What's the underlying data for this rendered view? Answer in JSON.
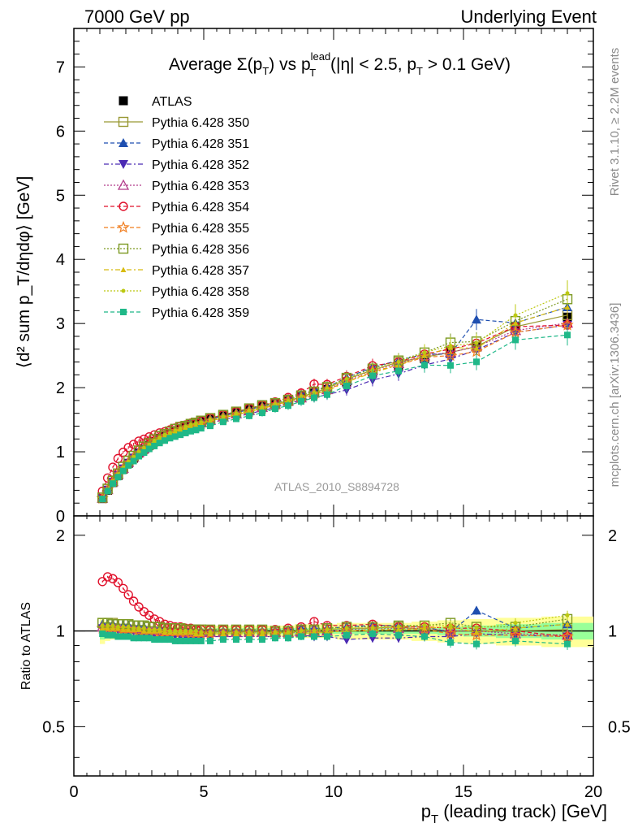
{
  "header": {
    "left": "7000 GeV pp",
    "right": "Underlying Event"
  },
  "title": {
    "prefix": "Average ",
    "sigma": "Σ(p",
    "sub_t1": "T",
    "mid": ") vs p",
    "sup_lead": "lead",
    "sub_t2": "T",
    "rest": " (|η| < 2.5, p",
    "sub_t3": "T",
    "tail": " > 0.1 GeV)"
  },
  "side_labels": {
    "rivet": "Rivet 3.1.10, ≥ 2.2M events",
    "mcplots": "mcplots.cern.ch [arXiv:1306.3436]"
  },
  "analysis_id": "ATLAS_2010_S8894728",
  "axes": {
    "ylabel_main": "⟨d² sum p_T/dηdφ⟩ [GeV]",
    "ylabel_ratio": "Ratio to ATLAS",
    "xlabel": "p_T (leading track) [GeV]",
    "xlabel_main": "p",
    "xlabel_sub": "T",
    "xlabel_rest": " (leading track) [GeV]"
  },
  "chart_data": {
    "type": "scatter",
    "x_range": [
      0,
      20
    ],
    "y_main_range": [
      0,
      7.6
    ],
    "y_ratio_range": [
      0.35,
      2.3
    ],
    "x_ticks": [
      0,
      5,
      10,
      15,
      20
    ],
    "y_main_ticks": [
      0,
      1,
      2,
      3,
      4,
      5,
      6,
      7
    ],
    "y_ratio_ticks": [
      0.5,
      1,
      2
    ],
    "x": [
      1.1,
      1.3,
      1.5,
      1.7,
      1.9,
      2.1,
      2.3,
      2.5,
      2.7,
      2.9,
      3.1,
      3.3,
      3.5,
      3.7,
      3.9,
      4.1,
      4.3,
      4.5,
      4.7,
      4.9,
      5.25,
      5.75,
      6.25,
      6.75,
      7.25,
      7.75,
      8.25,
      8.75,
      9.25,
      9.75,
      10.5,
      11.5,
      12.5,
      13.5,
      14.5,
      15.5,
      17.0,
      19.0
    ],
    "data_y": [
      0.27,
      0.4,
      0.52,
      0.63,
      0.73,
      0.82,
      0.9,
      0.98,
      1.04,
      1.1,
      1.16,
      1.21,
      1.25,
      1.29,
      1.33,
      1.36,
      1.39,
      1.42,
      1.44,
      1.47,
      1.51,
      1.56,
      1.61,
      1.66,
      1.71,
      1.76,
      1.81,
      1.86,
      1.92,
      1.97,
      2.09,
      2.23,
      2.33,
      2.45,
      2.55,
      2.64,
      2.95,
      3.1
    ],
    "series": [
      {
        "name": "ATLAS",
        "color": "#000000",
        "marker": "filled-square",
        "dash": "",
        "ratio": [
          1,
          1,
          1,
          1,
          1,
          1,
          1,
          1,
          1,
          1,
          1,
          1,
          1,
          1,
          1,
          1,
          1,
          1,
          1,
          1,
          1,
          1,
          1,
          1,
          1,
          1,
          1,
          1,
          1,
          1,
          1,
          1,
          1,
          1,
          1,
          1,
          1,
          1
        ]
      },
      {
        "name": "Pythia 6.428 350",
        "color": "#999933",
        "marker": "open-square",
        "dash": "",
        "ratio": [
          1.06,
          1.06,
          1.06,
          1.05,
          1.05,
          1.05,
          1.04,
          1.04,
          1.04,
          1.03,
          1.03,
          1.03,
          1.02,
          1.02,
          1.02,
          1.02,
          1.01,
          1.01,
          1.01,
          1.01,
          1.0,
          1.0,
          1.0,
          1.0,
          1.0,
          0.99,
          0.99,
          1.0,
          1.0,
          1.01,
          1.02,
          1.02,
          1.03,
          1.01,
          1.0,
          1.0,
          1.0,
          1.01
        ]
      },
      {
        "name": "Pythia 6.428 351",
        "color": "#1f4fb0",
        "marker": "filled-triangle-up",
        "dash": "5,3",
        "ratio": [
          1.05,
          1.05,
          1.05,
          1.04,
          1.04,
          1.04,
          1.03,
          1.03,
          1.03,
          1.02,
          1.02,
          1.02,
          1.02,
          1.01,
          1.01,
          1.01,
          1.01,
          1.01,
          1.0,
          1.0,
          1.0,
          1.0,
          1.0,
          1.0,
          1.0,
          1.0,
          1.01,
          1.02,
          1.02,
          1.02,
          1.03,
          1.04,
          1.04,
          1.03,
          0.99,
          1.16,
          1.02,
          1.05
        ]
      },
      {
        "name": "Pythia 6.428 352",
        "color": "#4b2ab3",
        "marker": "filled-triangle-down",
        "dash": "6,3,2,3",
        "ratio": [
          1.02,
          1.02,
          1.02,
          1.01,
          1.01,
          1.0,
          1.0,
          0.99,
          0.99,
          0.98,
          0.98,
          0.98,
          0.97,
          0.97,
          0.97,
          0.96,
          0.96,
          0.96,
          0.96,
          0.96,
          0.96,
          0.96,
          0.96,
          0.96,
          0.96,
          0.96,
          0.97,
          0.97,
          0.96,
          0.96,
          0.94,
          0.95,
          0.95,
          0.96,
          0.96,
          0.98,
          0.97,
          0.96
        ]
      },
      {
        "name": "Pythia 6.428 353",
        "color": "#b23b8a",
        "marker": "open-triangle-up",
        "dash": "2,2",
        "ratio": [
          1.03,
          1.03,
          1.03,
          1.03,
          1.02,
          1.02,
          1.02,
          1.01,
          1.01,
          1.01,
          1.01,
          1.0,
          1.0,
          1.0,
          1.0,
          1.0,
          0.99,
          0.99,
          0.99,
          0.99,
          0.99,
          0.99,
          0.99,
          0.99,
          0.99,
          0.99,
          0.99,
          0.99,
          1.0,
          1.0,
          1.01,
          1.02,
          1.02,
          1.02,
          1.0,
          1.0,
          0.98,
          0.97
        ]
      },
      {
        "name": "Pythia 6.428 354",
        "color": "#e0102b",
        "marker": "open-circle",
        "dash": "5,3",
        "ratio": [
          1.43,
          1.48,
          1.46,
          1.42,
          1.36,
          1.3,
          1.24,
          1.19,
          1.15,
          1.12,
          1.09,
          1.07,
          1.05,
          1.04,
          1.03,
          1.03,
          1.02,
          1.02,
          1.01,
          1.01,
          1.01,
          1.01,
          1.01,
          1.01,
          1.01,
          1.01,
          1.02,
          1.03,
          1.07,
          1.04,
          1.04,
          1.05,
          1.03,
          1.03,
          1.02,
          1.02,
          1.0,
          0.96
        ]
      },
      {
        "name": "Pythia 6.428 355",
        "color": "#f07d1f",
        "marker": "open-star",
        "dash": "5,3",
        "ratio": [
          1.02,
          1.02,
          1.02,
          1.02,
          1.01,
          1.01,
          1.01,
          1.0,
          1.0,
          1.0,
          1.0,
          0.99,
          0.99,
          0.99,
          0.99,
          0.99,
          0.99,
          0.98,
          0.98,
          0.98,
          0.98,
          0.98,
          0.98,
          0.98,
          0.98,
          0.98,
          0.99,
          0.99,
          0.99,
          1.0,
          1.0,
          1.01,
          1.01,
          1.01,
          0.98,
          0.97,
          0.97,
          0.96
        ]
      },
      {
        "name": "Pythia 6.428 356",
        "color": "#7d9a23",
        "marker": "open-square",
        "dash": "2,2",
        "ratio": [
          1.06,
          1.06,
          1.05,
          1.05,
          1.05,
          1.05,
          1.04,
          1.04,
          1.04,
          1.03,
          1.03,
          1.03,
          1.02,
          1.02,
          1.02,
          1.02,
          1.01,
          1.01,
          1.01,
          1.01,
          1.01,
          1.01,
          1.01,
          1.01,
          1.01,
          1.0,
          1.0,
          1.01,
          1.01,
          1.02,
          1.03,
          1.03,
          1.04,
          1.04,
          1.06,
          1.03,
          1.03,
          1.09
        ]
      },
      {
        "name": "Pythia 6.428 357",
        "color": "#d8bb10",
        "marker": "small-filled-triangle",
        "dash": "6,3,2,3",
        "ratio": [
          1.02,
          1.02,
          1.02,
          1.02,
          1.01,
          1.01,
          1.01,
          1.01,
          1.0,
          1.0,
          1.0,
          1.0,
          0.99,
          0.99,
          0.99,
          0.99,
          0.99,
          0.99,
          0.98,
          0.98,
          0.98,
          0.98,
          0.98,
          0.98,
          0.98,
          0.98,
          0.98,
          0.98,
          0.99,
          0.99,
          1.0,
          1.0,
          1.01,
          1.02,
          1.03,
          0.99,
          1.02,
          1.05
        ]
      },
      {
        "name": "Pythia 6.428 358",
        "color": "#bcc812",
        "marker": "small-filled-circle",
        "dash": "2,2",
        "ratio": [
          1.04,
          1.04,
          1.04,
          1.03,
          1.03,
          1.03,
          1.02,
          1.02,
          1.02,
          1.01,
          1.01,
          1.01,
          1.01,
          1.0,
          1.0,
          1.0,
          1.0,
          1.0,
          1.0,
          0.99,
          0.99,
          0.99,
          0.99,
          0.99,
          0.99,
          0.99,
          0.99,
          1.0,
          1.0,
          1.01,
          1.02,
          1.02,
          1.03,
          1.04,
          1.04,
          1.02,
          1.06,
          1.12
        ]
      },
      {
        "name": "Pythia 6.428 359",
        "color": "#1fb888",
        "marker": "filled-square-small",
        "dash": "5,3",
        "ratio": [
          0.98,
          0.97,
          0.97,
          0.96,
          0.96,
          0.96,
          0.95,
          0.95,
          0.95,
          0.95,
          0.94,
          0.94,
          0.94,
          0.94,
          0.93,
          0.93,
          0.93,
          0.93,
          0.93,
          0.93,
          0.93,
          0.94,
          0.94,
          0.94,
          0.94,
          0.95,
          0.95,
          0.96,
          0.96,
          0.96,
          0.97,
          0.98,
          0.97,
          0.96,
          0.92,
          0.91,
          0.93,
          0.91
        ]
      }
    ],
    "band_inner_halfwidth": [
      0.06,
      0.05,
      0.04,
      0.03,
      0.03,
      0.03,
      0.02,
      0.02,
      0.02,
      0.02,
      0.02,
      0.02,
      0.02,
      0.02,
      0.02,
      0.02,
      0.02,
      0.02,
      0.02,
      0.02,
      0.02,
      0.02,
      0.02,
      0.02,
      0.02,
      0.02,
      0.02,
      0.02,
      0.02,
      0.02,
      0.02,
      0.02,
      0.02,
      0.02,
      0.03,
      0.04,
      0.05,
      0.06
    ],
    "band_outer_halfwidth": [
      0.09,
      0.07,
      0.06,
      0.05,
      0.05,
      0.05,
      0.05,
      0.04,
      0.04,
      0.04,
      0.04,
      0.04,
      0.04,
      0.04,
      0.04,
      0.04,
      0.04,
      0.04,
      0.04,
      0.04,
      0.04,
      0.04,
      0.04,
      0.04,
      0.04,
      0.04,
      0.04,
      0.05,
      0.05,
      0.05,
      0.06,
      0.06,
      0.06,
      0.07,
      0.08,
      0.09,
      0.1,
      0.11
    ]
  }
}
